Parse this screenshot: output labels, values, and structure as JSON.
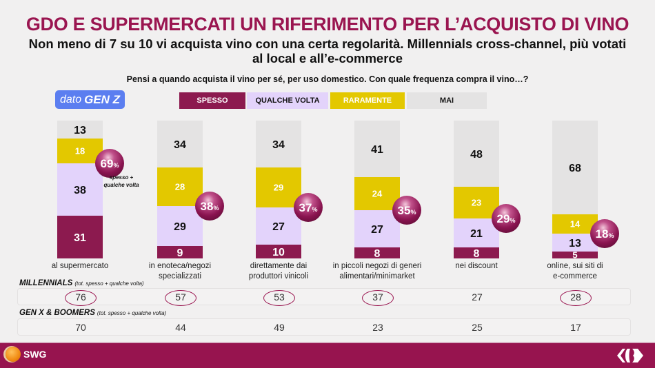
{
  "header": {
    "title": "GDO E SUPERMERCATI UN RIFERIMENTO PER L’ACQUISTO DI VINO",
    "subtitle": "Non meno di 7 su 10 vi acquista vino con una certa regolarità. Millennials cross-channel, più votati al local e all’e-commerce",
    "question": "Pensi a quando acquista il vino per sé, per uso domestico. Con quale frequenza compra il vino…?"
  },
  "badge": {
    "prefix": "dato",
    "label": "GEN Z"
  },
  "total_note": "spesso + qualche volta",
  "colors": {
    "spesso": "#8c1a4f",
    "qualche_volta": "#e3d3fb",
    "raramente": "#e3c800",
    "mai": "#e4e3e3",
    "accent": "#9a1550",
    "footer": "#97144f",
    "genz_badge": "#5b7ef0"
  },
  "chart_data": {
    "type": "bar",
    "stacked": true,
    "orientation": "vertical",
    "title": "Pensi a quando acquista il vino per sé, per uso domestico. Con quale frequenza compra il vino…?",
    "subtitle": "dato GEN Z",
    "xlabel": "",
    "ylabel": "",
    "ylim": [
      0,
      100
    ],
    "unit": "%",
    "legend_position": "top",
    "categories": [
      "al supermercato",
      "in enoteca/negozi specializzati",
      "direttamente dai produttori vinicoli",
      "in piccoli negozi di generi alimentari/minimarket",
      "nei discount",
      "online, sui siti di e-commerce"
    ],
    "category_lines": [
      [
        "al supermercato"
      ],
      [
        "in enoteca/negozi",
        "specializzati"
      ],
      [
        "direttamente dai",
        "produttori vinicoli"
      ],
      [
        "in piccoli negozi di generi",
        "alimentari/minimarket"
      ],
      [
        "nei discount"
      ],
      [
        "online, sui siti di",
        "e-commerce"
      ]
    ],
    "series": [
      {
        "name": "SPESSO",
        "key": "spesso",
        "color": "#8c1a4f",
        "label_color": "#ffffff",
        "values": [
          31,
          9,
          10,
          8,
          8,
          5
        ]
      },
      {
        "name": "QUALCHE VOLTA",
        "key": "qualche_volta",
        "color": "#e3d3fb",
        "label_color": "#111111",
        "values": [
          38,
          29,
          27,
          27,
          21,
          13
        ]
      },
      {
        "name": "RARAMENTE",
        "key": "raramente",
        "color": "#e3c800",
        "label_color": "#ffffff",
        "values": [
          18,
          28,
          29,
          24,
          23,
          14
        ]
      },
      {
        "name": "MAI",
        "key": "mai",
        "color": "#e4e3e3",
        "label_color": "#111111",
        "values": [
          13,
          34,
          34,
          41,
          48,
          68
        ]
      }
    ],
    "totals_spesso_qualche_volta": [
      69,
      38,
      37,
      35,
      29,
      18
    ],
    "totals_label": "spesso + qualche volta"
  },
  "comparison": {
    "millennials": {
      "label": "MILLENNIALS",
      "note": "(tot. spesso + qualche volta)",
      "values": [
        "76",
        "57",
        "53",
        "37",
        "27",
        "28"
      ],
      "circled": [
        true,
        true,
        true,
        true,
        false,
        true
      ]
    },
    "genx_boomers": {
      "label": "GEN X & BOOMERS",
      "note": "(tot. spesso + qualche volta)",
      "values": [
        "70",
        "44",
        "49",
        "23",
        "25",
        "17"
      ]
    }
  },
  "footer": {
    "left_logo": "SWG",
    "right_logo": "carrefour-logo"
  }
}
